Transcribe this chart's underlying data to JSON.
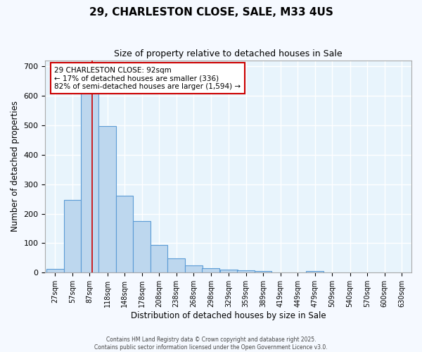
{
  "title_line1": "29, CHARLESTON CLOSE, SALE, M33 4US",
  "title_line2": "Size of property relative to detached houses in Sale",
  "xlabel": "Distribution of detached houses by size in Sale",
  "ylabel": "Number of detached properties",
  "bar_labels": [
    "27sqm",
    "57sqm",
    "87sqm",
    "118sqm",
    "148sqm",
    "178sqm",
    "208sqm",
    "238sqm",
    "268sqm",
    "298sqm",
    "329sqm",
    "359sqm",
    "389sqm",
    "419sqm",
    "449sqm",
    "479sqm",
    "509sqm",
    "540sqm",
    "570sqm",
    "600sqm",
    "630sqm"
  ],
  "bar_values": [
    12,
    247,
    648,
    497,
    261,
    174,
    95,
    49,
    24,
    14,
    11,
    9,
    6,
    0,
    0,
    5,
    0,
    0,
    0,
    0,
    0
  ],
  "bar_color": "#bdd7ee",
  "bar_edge_color": "#5b9bd5",
  "background_color": "#ddeeff",
  "plot_bg_color": "#e8f4fc",
  "grid_color": "#ffffff",
  "ylim": [
    0,
    720
  ],
  "yticks": [
    0,
    100,
    200,
    300,
    400,
    500,
    600,
    700
  ],
  "property_sqm": 92,
  "property_line_color": "#cc0000",
  "annotation_text": "29 CHARLESTON CLOSE: 92sqm\n← 17% of detached houses are smaller (336)\n82% of semi-detached houses are larger (1,594) →",
  "annotation_box_color": "#ffffff",
  "annotation_box_edge_color": "#cc0000",
  "footer_line1": "Contains HM Land Registry data © Crown copyright and database right 2025.",
  "footer_line2": "Contains public sector information licensed under the Open Government Licence v3.0.",
  "fig_bg": "#f5f9ff"
}
